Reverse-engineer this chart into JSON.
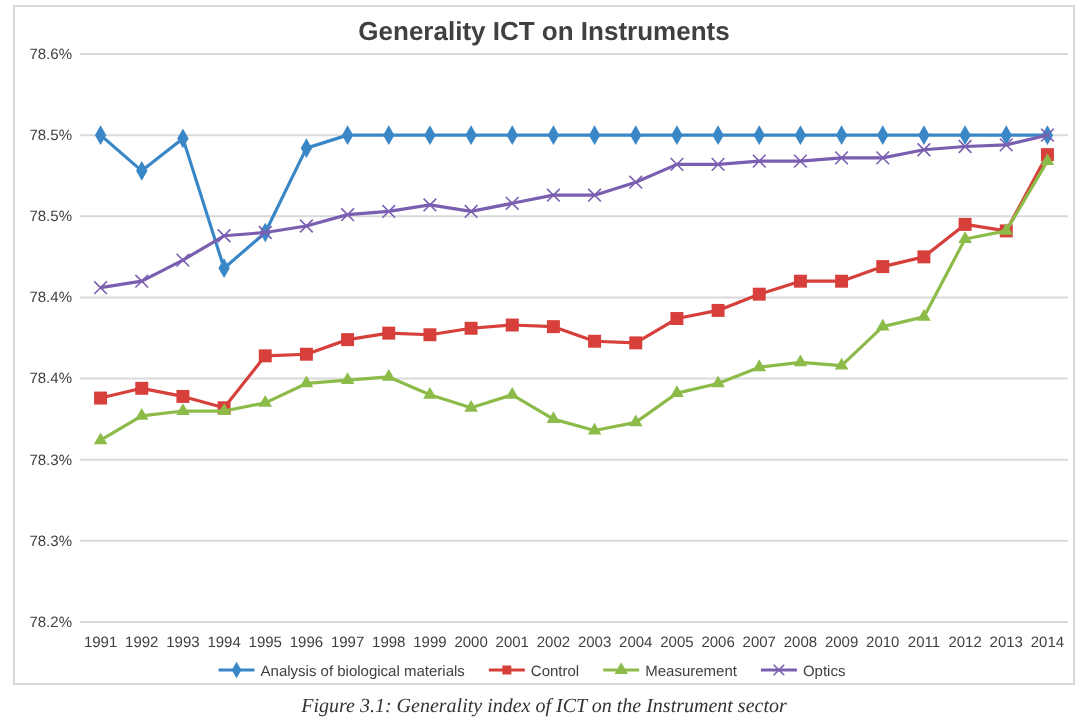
{
  "chart_data": {
    "type": "line",
    "title": "Generality ICT on Instruments",
    "categories": [
      "1991",
      "1992",
      "1993",
      "1994",
      "1995",
      "1996",
      "1997",
      "1998",
      "1999",
      "2000",
      "2001",
      "2002",
      "2003",
      "2004",
      "2005",
      "2006",
      "2007",
      "2008",
      "2009",
      "2010",
      "2011",
      "2012",
      "2013",
      "2014"
    ],
    "series": [
      {
        "name": "Analysis of biological materials",
        "color": "#3a87c8",
        "marker": "diamond",
        "values": [
          78.55,
          78.528,
          78.548,
          78.468,
          78.49,
          78.542,
          78.55,
          78.55,
          78.55,
          78.55,
          78.55,
          78.55,
          78.55,
          78.55,
          78.55,
          78.55,
          78.55,
          78.55,
          78.55,
          78.55,
          78.55,
          78.55,
          78.55,
          78.55
        ]
      },
      {
        "name": "Control",
        "color": "#d63f3a",
        "marker": "square",
        "values": [
          78.388,
          78.394,
          78.389,
          78.382,
          78.414,
          78.415,
          78.424,
          78.428,
          78.427,
          78.431,
          78.433,
          78.432,
          78.423,
          78.422,
          78.437,
          78.442,
          78.452,
          78.46,
          78.46,
          78.469,
          78.475,
          78.495,
          78.491,
          78.538
        ]
      },
      {
        "name": "Measurement",
        "color": "#8dbb4a",
        "marker": "triangle",
        "values": [
          78.362,
          78.377,
          78.38,
          78.38,
          78.385,
          78.397,
          78.399,
          78.401,
          78.39,
          78.382,
          78.39,
          78.375,
          78.368,
          78.373,
          78.391,
          78.397,
          78.407,
          78.41,
          78.408,
          78.432,
          78.438,
          78.486,
          78.491,
          78.534
        ]
      },
      {
        "name": "Optics",
        "color": "#7a5fb0",
        "marker": "cross",
        "values": [
          78.456,
          78.46,
          78.473,
          78.488,
          78.49,
          78.494,
          78.501,
          78.503,
          78.507,
          78.503,
          78.508,
          78.513,
          78.513,
          78.521,
          78.532,
          78.532,
          78.534,
          78.534,
          78.536,
          78.536,
          78.541,
          78.543,
          78.544,
          78.55
        ]
      }
    ],
    "ylim": [
      78.25,
      78.6
    ],
    "yticks": [
      {
        "value": 78.25,
        "label": "78.2%"
      },
      {
        "value": 78.3,
        "label": "78.3%"
      },
      {
        "value": 78.35,
        "label": "78.3%"
      },
      {
        "value": 78.4,
        "label": "78.4%"
      },
      {
        "value": 78.45,
        "label": "78.4%"
      },
      {
        "value": 78.5,
        "label": "78.5%"
      },
      {
        "value": 78.55,
        "label": "78.5%"
      },
      {
        "value": 78.6,
        "label": "78.6%"
      }
    ],
    "grid": "y",
    "legend": "bottom",
    "line_style": "solid",
    "annotations": [
      "Figure 3.1: Generality index of ICT on the Instrument sector"
    ]
  }
}
